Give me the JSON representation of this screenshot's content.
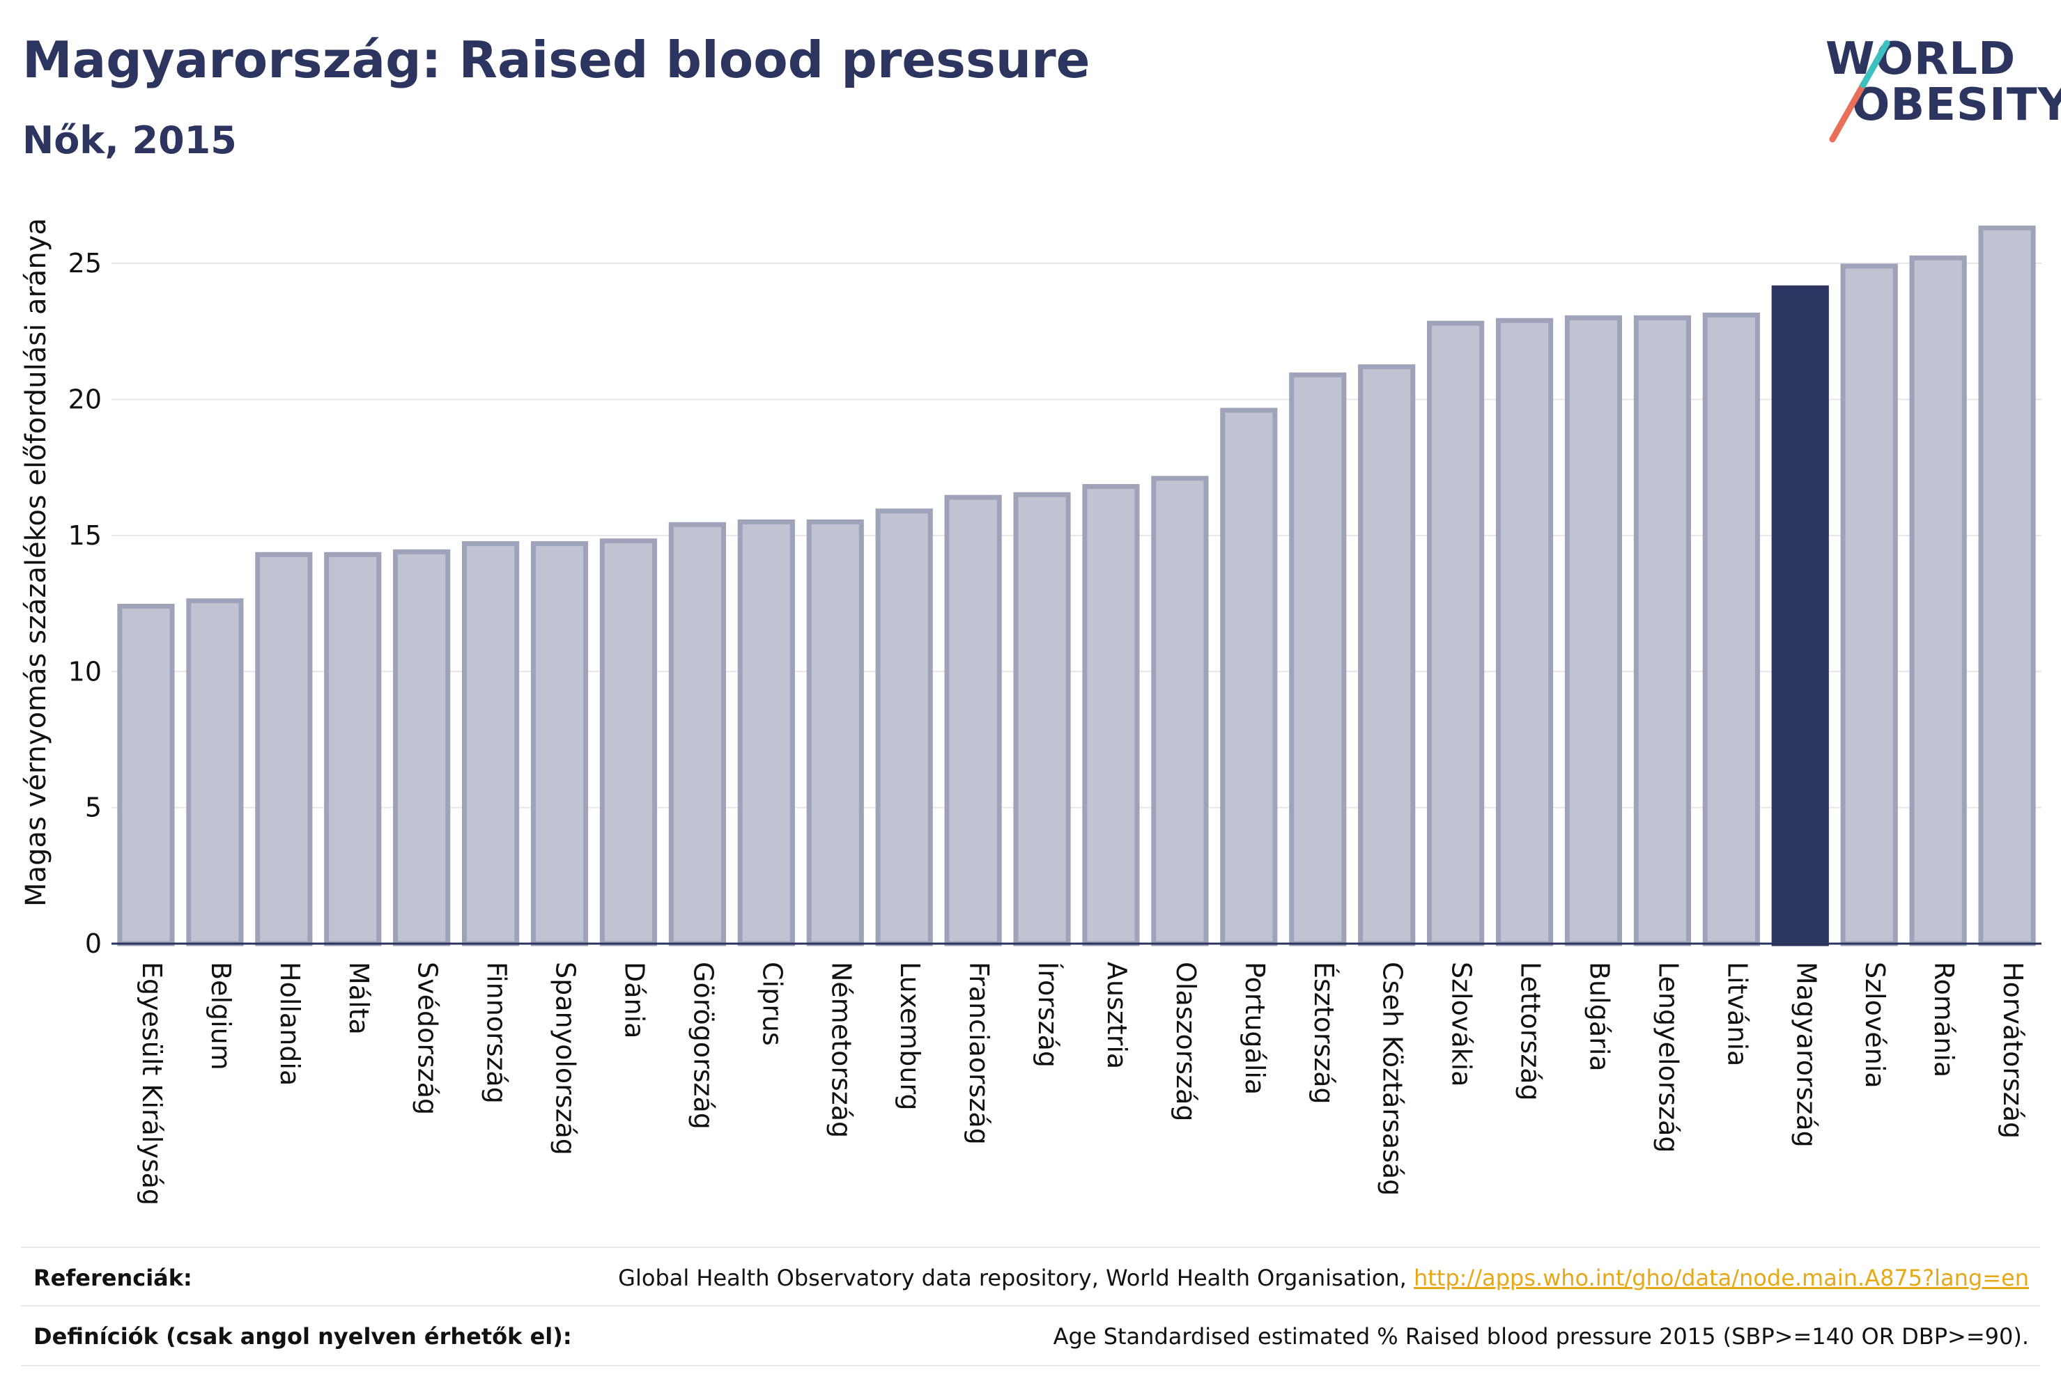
{
  "header": {
    "title": "Magyarország: Raised blood pressure",
    "subtitle": "Nők, 2015"
  },
  "logo": {
    "line1": "WORLD",
    "line2": "OBESITY",
    "colors": [
      "#2b3560",
      "#e8705a",
      "#3cc0c0"
    ]
  },
  "chart_data": {
    "type": "bar",
    "ylabel": "Magas vérnyomás százalékos előfordulási aránya",
    "ylim": [
      0,
      27
    ],
    "yticks": [
      0,
      5,
      10,
      15,
      20,
      25
    ],
    "grid": true,
    "highlight": "Magyarország",
    "colors": {
      "default": "#c0c3d1",
      "default_border": "#9ea3ba",
      "highlight": "#2b3560"
    },
    "categories": [
      "Egyesült Királyság",
      "Belgium",
      "Hollandia",
      "Málta",
      "Svédország",
      "Finnország",
      "Spanyolország",
      "Dánia",
      "Görögország",
      "Ciprus",
      "Németország",
      "Luxemburg",
      "Franciaország",
      "Írország",
      "Ausztria",
      "Olaszország",
      "Portugália",
      "Észtország",
      "Cseh Köztársaság",
      "Szlovákia",
      "Lettország",
      "Bulgária",
      "Lengyelország",
      "Litvánia",
      "Magyarország",
      "Szlovénia",
      "Románia",
      "Horvátország"
    ],
    "values": [
      12.4,
      12.6,
      14.3,
      14.3,
      14.4,
      14.7,
      14.7,
      14.8,
      15.4,
      15.5,
      15.5,
      15.9,
      16.4,
      16.5,
      16.8,
      17.1,
      19.6,
      20.9,
      21.2,
      22.8,
      22.9,
      23.0,
      23.0,
      23.1,
      24.1,
      24.9,
      25.2,
      26.3
    ]
  },
  "references": {
    "ref_label": "Referenciák:",
    "ref_text": "Global Health Observatory data repository, World Health Organisation, ",
    "ref_link": "http://apps.who.int/gho/data/node.main.A875?lang=en",
    "def_label": "Definíciók (csak angol nyelven érhetők el):",
    "def_text": "Age Standardised estimated % Raised blood pressure 2015 (SBP>=140 OR DBP>=90)."
  }
}
